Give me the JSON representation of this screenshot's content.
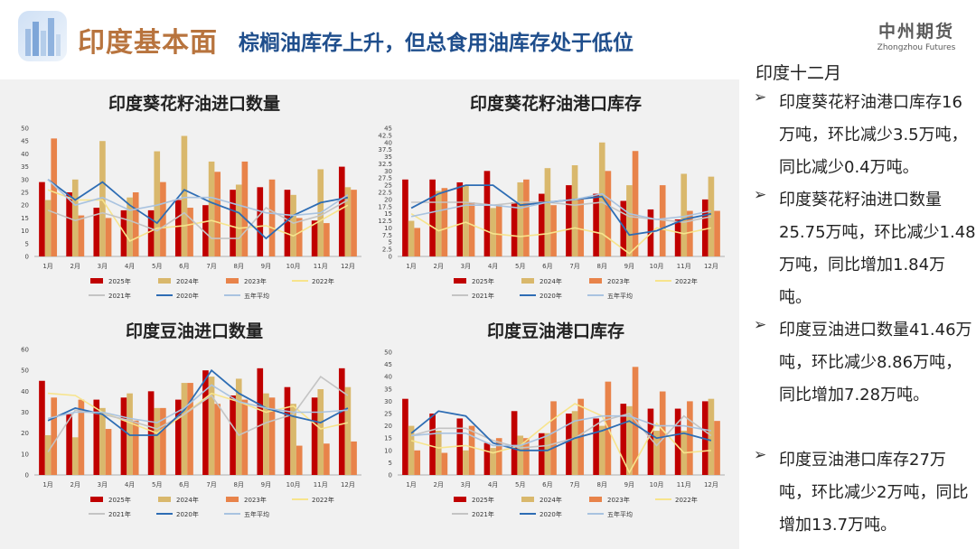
{
  "header": {
    "title_main": "印度基本面",
    "title_sub": "棕榈油库存上升，但总食用油库存处于低位",
    "brand_cn": "中州期货",
    "brand_en": "Zhongzhou Futures"
  },
  "panel": {
    "title": "印度十二月",
    "items": [
      {
        "text": "印度葵花籽油港口库存16万吨，环比减少3.5万吨，同比减少0.4万吨。"
      },
      {
        "text": "印度葵花籽油进口数量25.75万吨，环比减少1.48万吨，同比增加1.84万吨。"
      },
      {
        "text": "印度豆油进口数量41.46万吨，环比减少8.86万吨，同比增加7.28万吨。"
      },
      {
        "text": "印度豆油港口库存27万吨，环比减少2万吨，同比增加13.7万吨。"
      }
    ]
  },
  "colors": {
    "s2025": "#c00000",
    "s2024": "#d9b86c",
    "s2023": "#e8834a",
    "s2022": "#f7e48c",
    "s2021": "#c4c4c4",
    "s2020": "#2e6db4",
    "avg": "#a9c3e0"
  },
  "chart_data": [
    {
      "type": "bar",
      "title": "印度葵花籽油进口数量",
      "categories": [
        "1月",
        "2月",
        "3月",
        "4月",
        "5月",
        "6月",
        "7月",
        "8月",
        "9月",
        "10月",
        "11月",
        "12月"
      ],
      "ylim": [
        0,
        50
      ],
      "ytick_step": 5,
      "ytick_labels": [
        "0",
        "5",
        "10",
        "15",
        "20",
        "25",
        "30",
        "35",
        "40",
        "45",
        "50"
      ],
      "legend": [
        "2025年",
        "2024年",
        "2023年",
        "2022年",
        "2021年",
        "2020年",
        "五年平均"
      ],
      "bar_series": [
        {
          "name": "2025年",
          "values": [
            29,
            25,
            19,
            18,
            18,
            22,
            20,
            26,
            27,
            26,
            14,
            35
          ]
        },
        {
          "name": "2024年",
          "values": [
            22,
            30,
            45,
            23,
            41,
            47,
            37,
            28,
            0,
            24,
            34,
            27
          ]
        },
        {
          "name": "2023年",
          "values": [
            46,
            16,
            15,
            25,
            29,
            19,
            33,
            37,
            30,
            15,
            13,
            26
          ]
        }
      ],
      "line_series": [
        {
          "name": "2022年",
          "values": [
            26,
            22,
            22,
            6,
            11,
            12,
            14,
            11,
            12,
            8,
            14,
            20
          ]
        },
        {
          "name": "2021年",
          "values": [
            18,
            14,
            17,
            14,
            10,
            17,
            7,
            7,
            19,
            13,
            16,
            22
          ]
        },
        {
          "name": "2020年",
          "values": [
            30,
            22,
            29,
            20,
            13,
            26,
            21,
            17,
            7,
            16,
            21,
            23
          ]
        },
        {
          "name": "五年平均",
          "values": [
            30,
            20,
            23,
            18,
            20,
            23,
            23,
            20,
            17,
            16,
            17,
            24
          ]
        }
      ]
    },
    {
      "type": "bar",
      "title": "印度葵花籽油港口库存",
      "categories": [
        "1月",
        "2月",
        "3月",
        "4月",
        "5月",
        "6月",
        "7月",
        "8月",
        "9月",
        "10月",
        "11月",
        "12月"
      ],
      "ylim": [
        0,
        45
      ],
      "ytick_step": 2.5,
      "ytick_labels": [
        "0",
        "2.5",
        "5",
        "7.5",
        "10",
        "12.5",
        "15",
        "17.5",
        "20",
        "22.5",
        "25",
        "27.5",
        "30",
        "32.5",
        "35",
        "37.5",
        "40",
        "42.5",
        "45"
      ],
      "legend": [
        "2025年",
        "2024年",
        "2023年",
        "2022年",
        "2021年",
        "2020年",
        "五年平均"
      ],
      "bar_series": [
        {
          "name": "2025年",
          "values": [
            27,
            27,
            26,
            30,
            19,
            22,
            25,
            22,
            19.5,
            16.5,
            13,
            20
          ]
        },
        {
          "name": "2024年",
          "values": [
            12.5,
            23,
            25,
            17,
            26,
            31,
            32,
            40,
            25,
            0,
            29,
            28
          ]
        },
        {
          "name": "2023年",
          "values": [
            10,
            24,
            19,
            18,
            27,
            18,
            20,
            30,
            37,
            25,
            16,
            16
          ]
        }
      ],
      "line_series": [
        {
          "name": "2022年",
          "values": [
            15,
            9,
            12,
            8,
            7,
            8,
            10,
            8,
            1,
            10,
            8,
            10
          ]
        },
        {
          "name": "2021年",
          "values": [
            19,
            19,
            19,
            18,
            19,
            19,
            18,
            19,
            14,
            13,
            12,
            14
          ]
        },
        {
          "name": "2020年",
          "values": [
            17,
            22,
            25,
            25,
            18,
            19,
            20,
            21,
            7.5,
            9,
            13,
            15
          ]
        },
        {
          "name": "五年平均",
          "values": [
            14,
            16,
            18,
            18,
            17,
            19,
            20,
            22,
            15,
            13,
            14,
            16
          ]
        }
      ]
    },
    {
      "type": "bar",
      "title": "印度豆油进口数量",
      "categories": [
        "1月",
        "2月",
        "3月",
        "4月",
        "5月",
        "6月",
        "7月",
        "8月",
        "9月",
        "10月",
        "11月",
        "12月"
      ],
      "ylim": [
        0,
        60
      ],
      "ytick_step": 10,
      "ytick_labels": [
        "0",
        "10",
        "20",
        "30",
        "40",
        "50",
        "60"
      ],
      "legend": [
        "2025年",
        "2024年",
        "2023年",
        "2022年",
        "2021年",
        "2020年",
        "五年平均"
      ],
      "bar_series": [
        {
          "name": "2025年",
          "values": [
            45,
            29,
            36,
            37,
            40,
            36,
            50,
            38,
            51,
            42,
            37,
            51
          ]
        },
        {
          "name": "2024年",
          "values": [
            19,
            18,
            32,
            39,
            32,
            44,
            47,
            46,
            39,
            34,
            41,
            42
          ]
        },
        {
          "name": "2023年",
          "values": [
            37,
            36,
            22,
            26,
            32,
            44,
            34,
            36,
            37,
            14,
            15,
            16
          ]
        }
      ],
      "line_series": [
        {
          "name": "2022年",
          "values": [
            39,
            38,
            30,
            25,
            20,
            29,
            39,
            35,
            30,
            33,
            22,
            25
          ]
        },
        {
          "name": "2021年",
          "values": [
            11,
            31,
            29,
            26,
            22,
            29,
            38,
            19,
            25,
            29,
            47,
            38
          ]
        },
        {
          "name": "2020年",
          "values": [
            26,
            32,
            29,
            19,
            19,
            31,
            50,
            39,
            32,
            28,
            25,
            32
          ]
        },
        {
          "name": "五年平均",
          "values": [
            27,
            30,
            30,
            27,
            25,
            32,
            43,
            35,
            32,
            30,
            30,
            31
          ]
        }
      ]
    },
    {
      "type": "bar",
      "title": "印度豆油港口库存",
      "categories": [
        "1月",
        "2月",
        "3月",
        "4月",
        "5月",
        "6月",
        "7月",
        "8月",
        "9月",
        "10月",
        "11月",
        "12月"
      ],
      "ylim": [
        0,
        50
      ],
      "ytick_step": 5,
      "ytick_labels": [
        "0",
        "5",
        "10",
        "15",
        "20",
        "25",
        "30",
        "35",
        "40",
        "45",
        "50"
      ],
      "legend": [
        "2025年",
        "2024年",
        "2023年",
        "2022年",
        "2021年",
        "2020年",
        "五年平均"
      ],
      "bar_series": [
        {
          "name": "2025年",
          "values": [
            31,
            25,
            23,
            13,
            26,
            17,
            25,
            23,
            29,
            27,
            27,
            30
          ]
        },
        {
          "name": "2024年",
          "values": [
            20,
            18,
            10,
            11,
            16,
            17,
            26,
            20,
            28,
            18,
            18,
            31
          ]
        },
        {
          "name": "2023年",
          "values": [
            10,
            9,
            20,
            15,
            15,
            30,
            31,
            38,
            44,
            34,
            30,
            22
          ]
        }
      ],
      "line_series": [
        {
          "name": "2022年",
          "values": [
            14,
            11,
            12,
            9,
            12,
            21,
            29,
            24,
            1,
            21,
            9,
            10
          ]
        },
        {
          "name": "2021年",
          "values": [
            16,
            19,
            19,
            14,
            11,
            12,
            15,
            22,
            25,
            12,
            24,
            16
          ]
        },
        {
          "name": "2020年",
          "values": [
            17,
            26,
            24,
            13,
            10,
            10,
            15,
            18,
            22,
            15,
            17,
            14
          ]
        },
        {
          "name": "五年平均",
          "values": [
            16,
            17,
            17,
            12,
            12,
            16,
            22,
            24,
            24,
            20,
            20,
            18
          ]
        }
      ]
    }
  ]
}
